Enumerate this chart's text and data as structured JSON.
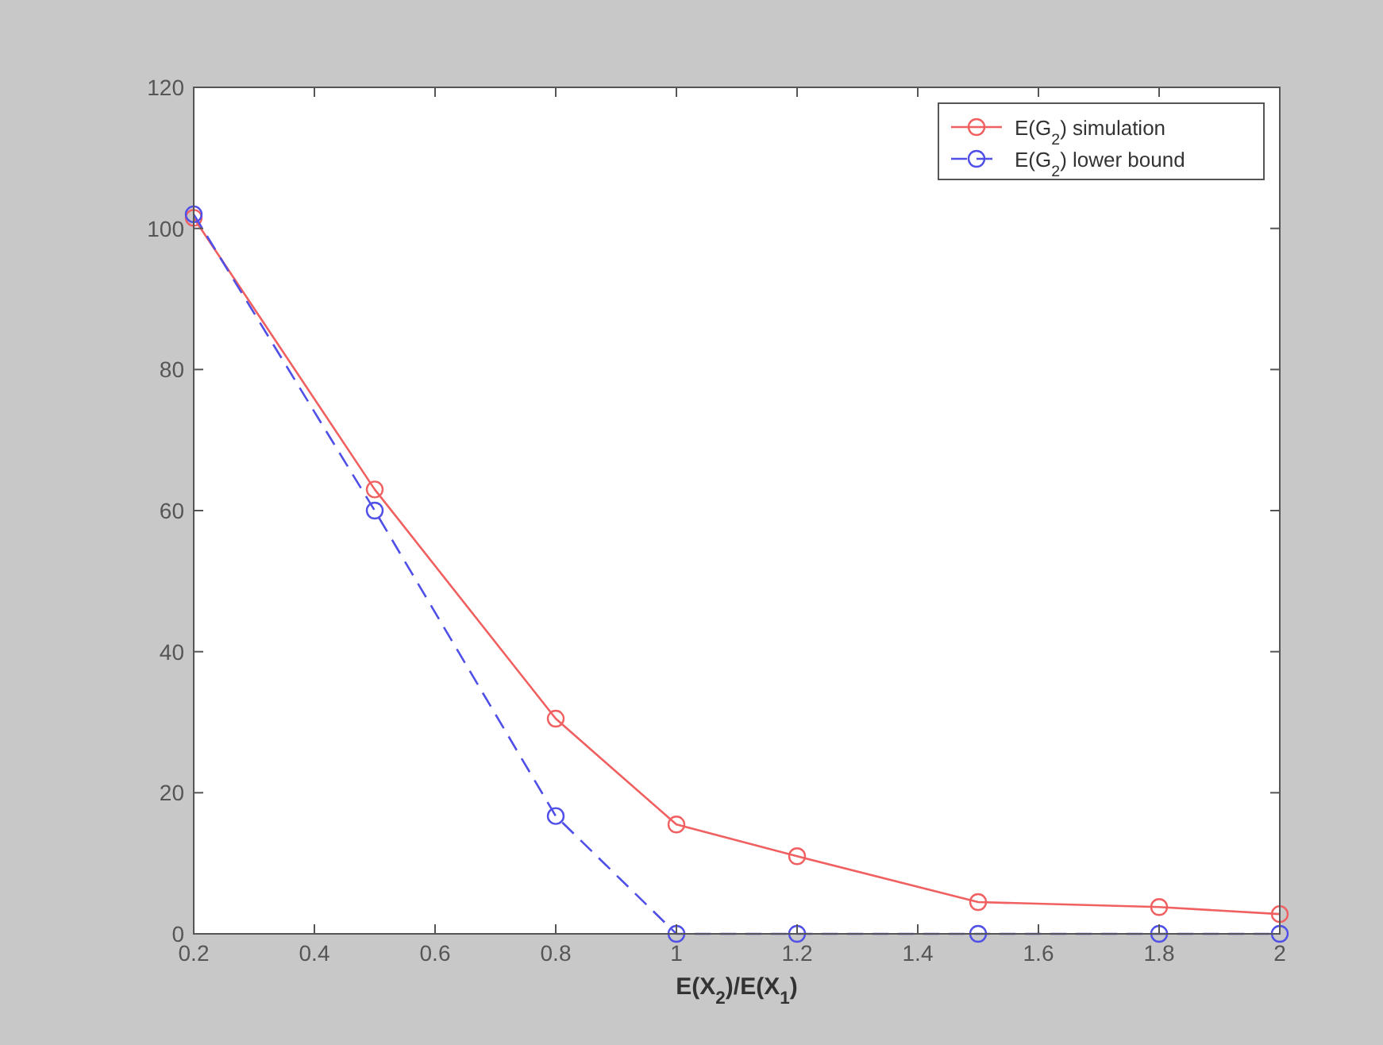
{
  "chart_data": {
    "type": "line",
    "xlabel": "E(X$_{2}$)/E(X$_{1}$)",
    "x": [
      0.2,
      0.5,
      0.8,
      1,
      1.2,
      1.5,
      1.8,
      2
    ],
    "series": [
      {
        "name": "E(G$_{2}$) simulation",
        "color": "#f06060",
        "values": [
          101.5,
          63,
          30.5,
          15.5,
          11,
          4.5,
          3.8,
          2.8
        ],
        "line_style": "solid"
      },
      {
        "name": "E(G$_{2}$) lower bound",
        "color": "#5050e8",
        "values": [
          102,
          60,
          16.7,
          0,
          0,
          0,
          0,
          0
        ],
        "line_style": "dashed"
      }
    ],
    "xlim": [
      0.2,
      2
    ],
    "xticks": [
      0.2,
      0.4,
      0.6,
      0.8,
      1,
      1.2,
      1.4,
      1.6,
      1.8,
      2
    ],
    "ylim": [
      0,
      120
    ],
    "yticks": [
      0,
      20,
      40,
      60,
      80,
      100,
      120
    ],
    "grid": false,
    "legend": "top right",
    "marker": "circle"
  }
}
